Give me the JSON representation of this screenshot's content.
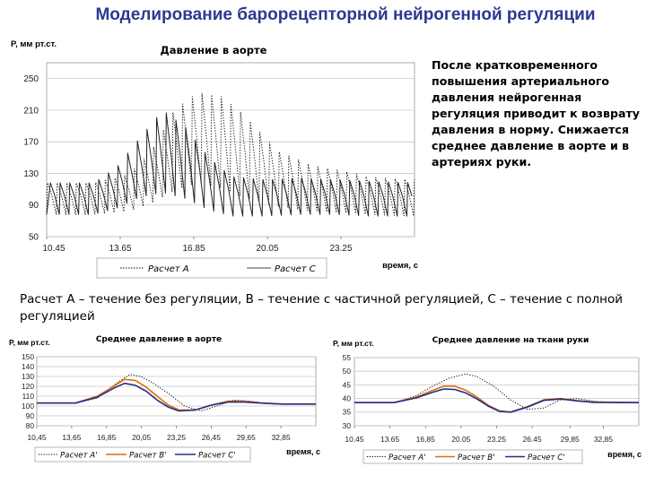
{
  "slide": {
    "title": "Моделирование барорецепторной нейрогенной регуляции",
    "side_text": "После кратковременного повышения артериального давления нейрогенная регуляция приводит к возврату давления в норму. Снижается среднее давление в аорте и в артериях руки.",
    "caption": "Расчет А – течение без регуляции, В – течение с частичной регуляцией, С – течение с полной регуляцией"
  },
  "colors": {
    "title": "#2b3990",
    "line_a": "#000000",
    "line_b": "#e46c0a",
    "line_c": "#1f2f86"
  },
  "chart_data": [
    {
      "type": "line",
      "title": "Давление в аорте",
      "xlabel": "время, с",
      "ylabel": "P, мм рт.ст.",
      "xlim": [
        10.45,
        26.45
      ],
      "ylim": [
        50,
        270
      ],
      "x_ticks": [
        10.45,
        13.65,
        16.85,
        20.05,
        23.25
      ],
      "x_tick_labels": [
        "10.45",
        "13.65",
        "16.85",
        "20.05",
        "23.25"
      ],
      "y_ticks": [
        50,
        90,
        130,
        170,
        210,
        250
      ],
      "y_tick_labels": [
        "50",
        "90",
        "130",
        "170",
        "210",
        "250"
      ],
      "grid": true,
      "legend_position": "bottom",
      "pulse_period_s": 0.42,
      "series": [
        {
          "name": "Расчет A",
          "style": "dotted",
          "envelope_time": [
            10.45,
            12.5,
            14.0,
            15.0,
            16.0,
            17.0,
            18.0,
            19.0,
            20.5,
            22.0,
            23.5,
            24.5,
            26.45
          ],
          "systolic": [
            118,
            118,
            128,
            158,
            210,
            232,
            228,
            205,
            158,
            140,
            132,
            125,
            122
          ],
          "diastolic": [
            78,
            78,
            82,
            92,
            108,
            118,
            112,
            100,
            88,
            82,
            80,
            78,
            76
          ]
        },
        {
          "name": "Расчет C",
          "style": "solid",
          "envelope_time": [
            10.45,
            12.5,
            13.5,
            14.5,
            15.5,
            16.5,
            17.5,
            18.5,
            20.0,
            21.5,
            23.0,
            24.5,
            26.45
          ],
          "systolic": [
            118,
            118,
            138,
            175,
            210,
            188,
            150,
            126,
            122,
            124,
            122,
            120,
            118
          ],
          "diastolic": [
            78,
            78,
            86,
            100,
            106,
            98,
            84,
            76,
            76,
            78,
            78,
            76,
            76
          ]
        }
      ]
    },
    {
      "type": "line",
      "title": "Среднее давление в аорте",
      "xlabel": "время, с",
      "ylabel": "P, мм рт.ст.",
      "xlim": [
        10.45,
        36.05
      ],
      "ylim": [
        80,
        150
      ],
      "x_ticks": [
        10.45,
        13.65,
        16.85,
        20.05,
        23.25,
        26.45,
        29.65,
        32.85
      ],
      "x_tick_labels": [
        "10,45",
        "13,65",
        "16,85",
        "20,05",
        "23,25",
        "26,45",
        "29,65",
        "32,85"
      ],
      "y_ticks": [
        80,
        90,
        100,
        110,
        120,
        130,
        140,
        150
      ],
      "y_tick_labels": [
        "80",
        "90",
        "100",
        "110",
        "120",
        "130",
        "140",
        "150"
      ],
      "grid": true,
      "legend_position": "bottom",
      "series": [
        {
          "name": "Расчет А'",
          "color": "#000000",
          "style": "dotted",
          "x": [
            10.45,
            14.0,
            16.0,
            18.0,
            19.0,
            20.0,
            21.0,
            22.5,
            24.0,
            25.5,
            27.0,
            28.5,
            30.0,
            32.0,
            34.0,
            36.05
          ],
          "y": [
            103,
            103,
            108,
            125,
            132,
            130,
            124,
            113,
            100,
            95,
            100,
            106,
            105,
            102,
            102,
            102
          ]
        },
        {
          "name": "Расчет В'",
          "color": "#e46c0a",
          "style": "solid",
          "x": [
            10.45,
            14.0,
            16.0,
            17.5,
            18.5,
            19.5,
            20.5,
            21.5,
            22.5,
            23.5,
            25.0,
            26.5,
            28.0,
            29.5,
            31.0,
            33.0,
            36.05
          ],
          "y": [
            103,
            103,
            110,
            120,
            127,
            126,
            119,
            110,
            101,
            96,
            96,
            101,
            105,
            105,
            103,
            102,
            102
          ]
        },
        {
          "name": "Расчет С'",
          "color": "#1f2f86",
          "style": "solid",
          "x": [
            10.45,
            14.0,
            16.0,
            17.5,
            18.5,
            19.5,
            20.5,
            21.5,
            22.5,
            23.5,
            25.0,
            26.5,
            28.0,
            29.5,
            31.0,
            33.0,
            36.05
          ],
          "y": [
            103,
            103,
            109,
            118,
            123,
            121,
            115,
            106,
            99,
            95,
            96,
            101,
            104,
            104,
            103,
            102,
            102
          ]
        }
      ]
    },
    {
      "type": "line",
      "title": "Среднее давление на ткани руки",
      "xlabel": "время, с",
      "ylabel": "P, мм рт.ст.",
      "xlim": [
        10.45,
        36.05
      ],
      "ylim": [
        30,
        55
      ],
      "x_ticks": [
        10.45,
        13.65,
        16.85,
        20.05,
        23.25,
        26.45,
        29.85,
        32.85
      ],
      "x_tick_labels": [
        "10.45",
        "13.65",
        "16,85",
        "20.05",
        "23.25",
        "26.45",
        "29,85",
        "32,85"
      ],
      "y_ticks": [
        30,
        35,
        40,
        45,
        50,
        55
      ],
      "y_tick_labels": [
        "30",
        "35",
        "40",
        "45",
        "50",
        "55"
      ],
      "grid": true,
      "legend_position": "bottom",
      "series": [
        {
          "name": "Расчет А'",
          "color": "#000000",
          "style": "dotted",
          "x": [
            10.45,
            14.0,
            16.0,
            17.5,
            19.0,
            20.5,
            21.5,
            23.0,
            24.5,
            26.0,
            27.5,
            29.0,
            30.5,
            32.0,
            34.0,
            36.05
          ],
          "y": [
            38.5,
            38.5,
            41,
            44.5,
            47.5,
            49,
            48,
            44.5,
            39.5,
            36,
            36.5,
            39.5,
            40,
            39,
            38.5,
            38.5
          ]
        },
        {
          "name": "Расчет В'",
          "color": "#e46c0a",
          "style": "solid",
          "x": [
            10.45,
            14.0,
            16.0,
            17.5,
            18.5,
            19.5,
            20.5,
            21.5,
            22.5,
            23.5,
            24.5,
            26.0,
            27.5,
            29.0,
            30.5,
            32.0,
            36.05
          ],
          "y": [
            38.5,
            38.5,
            40.5,
            43,
            44.5,
            44.5,
            43,
            40.5,
            37.5,
            35.5,
            35,
            37,
            39.5,
            40,
            39.2,
            38.7,
            38.5
          ]
        },
        {
          "name": "Расчет С'",
          "color": "#1f2f86",
          "style": "solid",
          "x": [
            10.45,
            14.0,
            16.0,
            17.5,
            18.5,
            19.5,
            20.5,
            21.5,
            22.5,
            23.5,
            24.5,
            26.0,
            27.5,
            29.0,
            30.5,
            32.0,
            36.05
          ],
          "y": [
            38.5,
            38.5,
            40.2,
            42.3,
            43.5,
            43.3,
            42,
            39.8,
            37.2,
            35.3,
            35,
            36.8,
            39.3,
            39.8,
            39.1,
            38.6,
            38.5
          ]
        }
      ]
    }
  ]
}
